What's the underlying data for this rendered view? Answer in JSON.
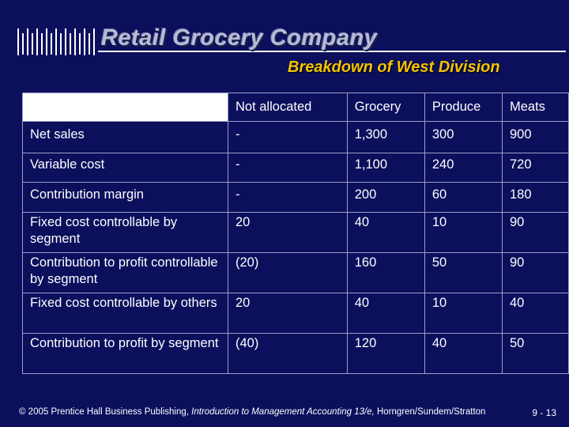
{
  "header": {
    "title": "Retail Grocery Company",
    "subtitle": "Breakdown of West Division"
  },
  "table": {
    "columns": [
      "",
      "Not allocated",
      "Grocery",
      "Produce",
      "Meats"
    ],
    "rows": [
      [
        "Net sales",
        "-",
        "1,300",
        "300",
        "900"
      ],
      [
        "Variable cost",
        "-",
        "1,100",
        "240",
        "720"
      ],
      [
        "Contribution margin",
        "-",
        "200",
        "60",
        "180"
      ],
      [
        "Fixed cost controllable by segment",
        "20",
        "40",
        "10",
        "90"
      ],
      [
        "Contribution to profit controllable by segment",
        "(20)",
        "160",
        "50",
        "90"
      ],
      [
        "Fixed cost controllable by others",
        "20",
        "40",
        "10",
        "40"
      ],
      [
        "Contribution to profit by segment",
        "(40)",
        "120",
        "40",
        "50"
      ]
    ]
  },
  "footer": {
    "prefix": "© 2005 Prentice Hall Business Publishing, ",
    "book": "Introduction to Management Accounting 13/e,",
    "suffix": " Horngren/Sundem/Stratton",
    "page": "9 - 13"
  },
  "colors": {
    "background": "#0b0f5c",
    "title": "#b8bbd6",
    "subtitle": "#f6c400",
    "text": "#ffffff"
  }
}
